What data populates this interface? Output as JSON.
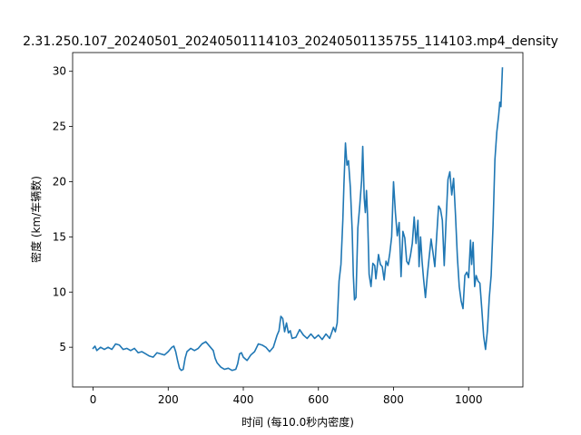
{
  "chart_data": {
    "type": "line",
    "title": "2.31.250.107_20240501_20240501114103_20240501135755_114103.mp4_density",
    "xlabel": "时间 (每10.0秒内密度)",
    "ylabel": "密度 (km/车辆数)",
    "xlim": [
      -54.5,
      1144.5
    ],
    "ylim": [
      1.4,
      31.7
    ],
    "xticks": [
      0,
      200,
      400,
      600,
      800,
      1000
    ],
    "yticks": [
      5,
      10,
      15,
      20,
      25,
      30
    ],
    "grid": false,
    "series": [
      {
        "color": "#1f77b4",
        "points": [
          [
            0,
            4.9
          ],
          [
            5,
            5.1
          ],
          [
            10,
            4.7
          ],
          [
            20,
            5.0
          ],
          [
            30,
            4.8
          ],
          [
            40,
            5.0
          ],
          [
            50,
            4.8
          ],
          [
            60,
            5.3
          ],
          [
            70,
            5.2
          ],
          [
            80,
            4.8
          ],
          [
            90,
            4.9
          ],
          [
            100,
            4.7
          ],
          [
            110,
            4.9
          ],
          [
            120,
            4.5
          ],
          [
            130,
            4.6
          ],
          [
            140,
            4.4
          ],
          [
            150,
            4.2
          ],
          [
            160,
            4.1
          ],
          [
            170,
            4.5
          ],
          [
            180,
            4.4
          ],
          [
            190,
            4.3
          ],
          [
            200,
            4.6
          ],
          [
            210,
            5.0
          ],
          [
            215,
            5.1
          ],
          [
            220,
            4.6
          ],
          [
            225,
            3.8
          ],
          [
            230,
            3.1
          ],
          [
            235,
            2.9
          ],
          [
            240,
            3.0
          ],
          [
            245,
            4.0
          ],
          [
            250,
            4.6
          ],
          [
            260,
            4.9
          ],
          [
            270,
            4.7
          ],
          [
            280,
            4.9
          ],
          [
            290,
            5.3
          ],
          [
            300,
            5.5
          ],
          [
            310,
            5.1
          ],
          [
            320,
            4.7
          ],
          [
            325,
            4.0
          ],
          [
            330,
            3.6
          ],
          [
            340,
            3.2
          ],
          [
            350,
            3.0
          ],
          [
            360,
            3.1
          ],
          [
            370,
            2.9
          ],
          [
            380,
            3.0
          ],
          [
            385,
            3.5
          ],
          [
            390,
            4.4
          ],
          [
            395,
            4.5
          ],
          [
            400,
            4.1
          ],
          [
            410,
            3.8
          ],
          [
            420,
            4.3
          ],
          [
            430,
            4.6
          ],
          [
            440,
            5.3
          ],
          [
            450,
            5.2
          ],
          [
            460,
            5.0
          ],
          [
            470,
            4.6
          ],
          [
            480,
            5.0
          ],
          [
            490,
            6.1
          ],
          [
            495,
            6.5
          ],
          [
            500,
            7.8
          ],
          [
            505,
            7.6
          ],
          [
            510,
            6.4
          ],
          [
            515,
            7.2
          ],
          [
            520,
            6.3
          ],
          [
            525,
            6.5
          ],
          [
            530,
            5.8
          ],
          [
            540,
            5.9
          ],
          [
            550,
            6.6
          ],
          [
            560,
            6.1
          ],
          [
            570,
            5.8
          ],
          [
            580,
            6.2
          ],
          [
            590,
            5.8
          ],
          [
            600,
            6.1
          ],
          [
            610,
            5.7
          ],
          [
            620,
            6.2
          ],
          [
            630,
            5.8
          ],
          [
            635,
            6.3
          ],
          [
            640,
            6.8
          ],
          [
            645,
            6.4
          ],
          [
            650,
            7.2
          ],
          [
            655,
            11.0
          ],
          [
            660,
            12.5
          ],
          [
            665,
            16.5
          ],
          [
            668,
            19.8
          ],
          [
            672,
            23.5
          ],
          [
            676,
            21.5
          ],
          [
            680,
            21.9
          ],
          [
            685,
            19.5
          ],
          [
            690,
            15.5
          ],
          [
            693,
            11.5
          ],
          [
            696,
            9.3
          ],
          [
            700,
            9.5
          ],
          [
            705,
            15.8
          ],
          [
            710,
            17.8
          ],
          [
            715,
            20.1
          ],
          [
            718,
            23.2
          ],
          [
            722,
            18.5
          ],
          [
            725,
            17.2
          ],
          [
            728,
            19.2
          ],
          [
            731,
            16.8
          ],
          [
            735,
            11.6
          ],
          [
            740,
            10.5
          ],
          [
            745,
            12.6
          ],
          [
            750,
            12.4
          ],
          [
            753,
            11.2
          ],
          [
            756,
            12.1
          ],
          [
            760,
            13.4
          ],
          [
            765,
            12.5
          ],
          [
            770,
            12.3
          ],
          [
            775,
            11.1
          ],
          [
            780,
            12.8
          ],
          [
            785,
            12.4
          ],
          [
            790,
            13.5
          ],
          [
            795,
            15.0
          ],
          [
            800,
            20.0
          ],
          [
            805,
            17.2
          ],
          [
            810,
            15.1
          ],
          [
            815,
            16.3
          ],
          [
            820,
            11.4
          ],
          [
            825,
            15.5
          ],
          [
            830,
            14.9
          ],
          [
            835,
            12.8
          ],
          [
            840,
            12.5
          ],
          [
            845,
            13.3
          ],
          [
            850,
            14.4
          ],
          [
            855,
            16.8
          ],
          [
            860,
            14.4
          ],
          [
            865,
            16.5
          ],
          [
            868,
            12.3
          ],
          [
            872,
            15.0
          ],
          [
            876,
            12.8
          ],
          [
            880,
            11.2
          ],
          [
            885,
            9.5
          ],
          [
            890,
            11.5
          ],
          [
            895,
            13.2
          ],
          [
            900,
            14.8
          ],
          [
            905,
            13.6
          ],
          [
            910,
            12.3
          ],
          [
            915,
            15.1
          ],
          [
            920,
            17.8
          ],
          [
            925,
            17.5
          ],
          [
            930,
            16.5
          ],
          [
            935,
            12.4
          ],
          [
            940,
            16.5
          ],
          [
            945,
            20.2
          ],
          [
            950,
            20.9
          ],
          [
            955,
            18.8
          ],
          [
            960,
            20.3
          ],
          [
            965,
            17.0
          ],
          [
            970,
            13.2
          ],
          [
            975,
            10.5
          ],
          [
            980,
            9.2
          ],
          [
            985,
            8.5
          ],
          [
            990,
            11.5
          ],
          [
            995,
            11.8
          ],
          [
            1000,
            11.3
          ],
          [
            1005,
            14.7
          ],
          [
            1008,
            12.5
          ],
          [
            1012,
            14.5
          ],
          [
            1016,
            10.5
          ],
          [
            1020,
            11.5
          ],
          [
            1025,
            11.0
          ],
          [
            1030,
            10.8
          ],
          [
            1035,
            8.5
          ],
          [
            1040,
            6.0
          ],
          [
            1045,
            4.8
          ],
          [
            1050,
            6.5
          ],
          [
            1055,
            9.5
          ],
          [
            1060,
            11.5
          ],
          [
            1065,
            16.0
          ],
          [
            1070,
            22.0
          ],
          [
            1075,
            24.5
          ],
          [
            1080,
            26.0
          ],
          [
            1083,
            27.2
          ],
          [
            1086,
            26.8
          ],
          [
            1090,
            30.3
          ]
        ]
      }
    ]
  }
}
